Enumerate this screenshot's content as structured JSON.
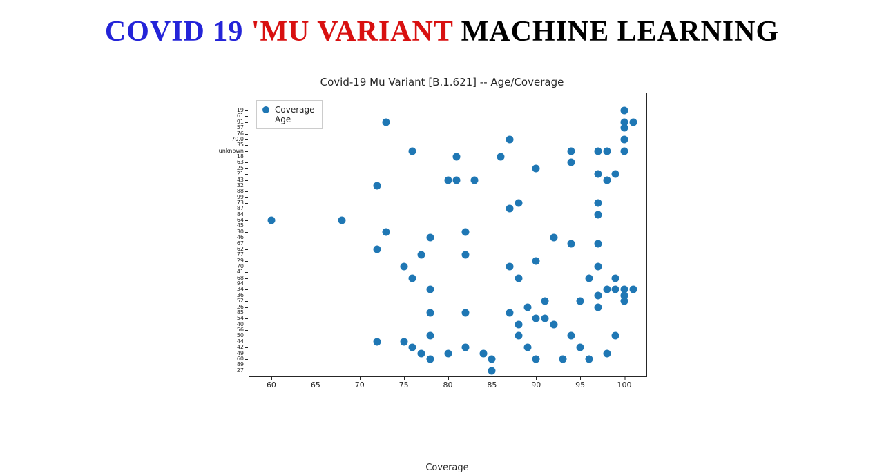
{
  "headline": {
    "parts": [
      {
        "text": "COVID 19 ",
        "color": "#2424d8"
      },
      {
        "text": "'MU VARIANT ",
        "color": "#d81010"
      },
      {
        "text": "MACHINE LEARNING",
        "color": "#000000"
      }
    ]
  },
  "chart": {
    "type": "scatter",
    "title": "Covid-19 Mu Variant [B.1.621] -- Age/Coverage",
    "xlabel": "Coverage",
    "background_color": "#ffffff",
    "border_color": "#262626",
    "marker_color": "#1f77b4",
    "marker_size": 11,
    "x": {
      "min": 57.5,
      "max": 102.5,
      "ticks": [
        60,
        65,
        70,
        75,
        80,
        85,
        90,
        95,
        100
      ]
    },
    "y": {
      "min": -1,
      "max": 48,
      "labels": [
        "27",
        "89",
        "60",
        "49",
        "42",
        "44",
        "50",
        "56",
        "40",
        "54",
        "85",
        "26",
        "52",
        "36",
        "34",
        "94",
        "68",
        "41",
        "70",
        "29",
        "77",
        "62",
        "67",
        "46",
        "30",
        "45",
        "64",
        "84",
        "87",
        "73",
        "99",
        "88",
        "32",
        "43",
        "21",
        "25",
        "63",
        "18",
        "unknown",
        "35",
        "70.0",
        "76",
        "57",
        "91",
        "61",
        "19"
      ]
    },
    "legend": {
      "marker_color": "#1f77b4",
      "rows": [
        "Coverage",
        "Age"
      ]
    },
    "points": [
      [
        60,
        26
      ],
      [
        68,
        26
      ],
      [
        72,
        21
      ],
      [
        72,
        5
      ],
      [
        72,
        32
      ],
      [
        73,
        43
      ],
      [
        73,
        24
      ],
      [
        75,
        18
      ],
      [
        75,
        5
      ],
      [
        76,
        38
      ],
      [
        76,
        16
      ],
      [
        76,
        4
      ],
      [
        77,
        20
      ],
      [
        77,
        3
      ],
      [
        78,
        23
      ],
      [
        78,
        14
      ],
      [
        78,
        10
      ],
      [
        78,
        6
      ],
      [
        78,
        2
      ],
      [
        80,
        33
      ],
      [
        80,
        3
      ],
      [
        81,
        37
      ],
      [
        81,
        33
      ],
      [
        82,
        24
      ],
      [
        82,
        20
      ],
      [
        82,
        10
      ],
      [
        82,
        4
      ],
      [
        83,
        33
      ],
      [
        84,
        3
      ],
      [
        85,
        2
      ],
      [
        85,
        0
      ],
      [
        86,
        37
      ],
      [
        87,
        28
      ],
      [
        87,
        40
      ],
      [
        87,
        18
      ],
      [
        87,
        10
      ],
      [
        88,
        29
      ],
      [
        88,
        16
      ],
      [
        88,
        8
      ],
      [
        88,
        6
      ],
      [
        89,
        11
      ],
      [
        89,
        4
      ],
      [
        90,
        35
      ],
      [
        90,
        19
      ],
      [
        90,
        9
      ],
      [
        90,
        2
      ],
      [
        91,
        12
      ],
      [
        91,
        9
      ],
      [
        92,
        23
      ],
      [
        92,
        8
      ],
      [
        93,
        2
      ],
      [
        94,
        38
      ],
      [
        94,
        36
      ],
      [
        94,
        22
      ],
      [
        94,
        6
      ],
      [
        95,
        12
      ],
      [
        95,
        4
      ],
      [
        96,
        16
      ],
      [
        96,
        2
      ],
      [
        97,
        38
      ],
      [
        97,
        34
      ],
      [
        97,
        29
      ],
      [
        97,
        27
      ],
      [
        97,
        22
      ],
      [
        97,
        18
      ],
      [
        97,
        13
      ],
      [
        97,
        11
      ],
      [
        98,
        38
      ],
      [
        98,
        33
      ],
      [
        98,
        14
      ],
      [
        98,
        3
      ],
      [
        99,
        34
      ],
      [
        99,
        16
      ],
      [
        99,
        14
      ],
      [
        99,
        6
      ],
      [
        100,
        45
      ],
      [
        100,
        43
      ],
      [
        100,
        42
      ],
      [
        100,
        40
      ],
      [
        100,
        38
      ],
      [
        100,
        14
      ],
      [
        100,
        13
      ],
      [
        100,
        12
      ],
      [
        101,
        43
      ],
      [
        101,
        14
      ]
    ]
  }
}
